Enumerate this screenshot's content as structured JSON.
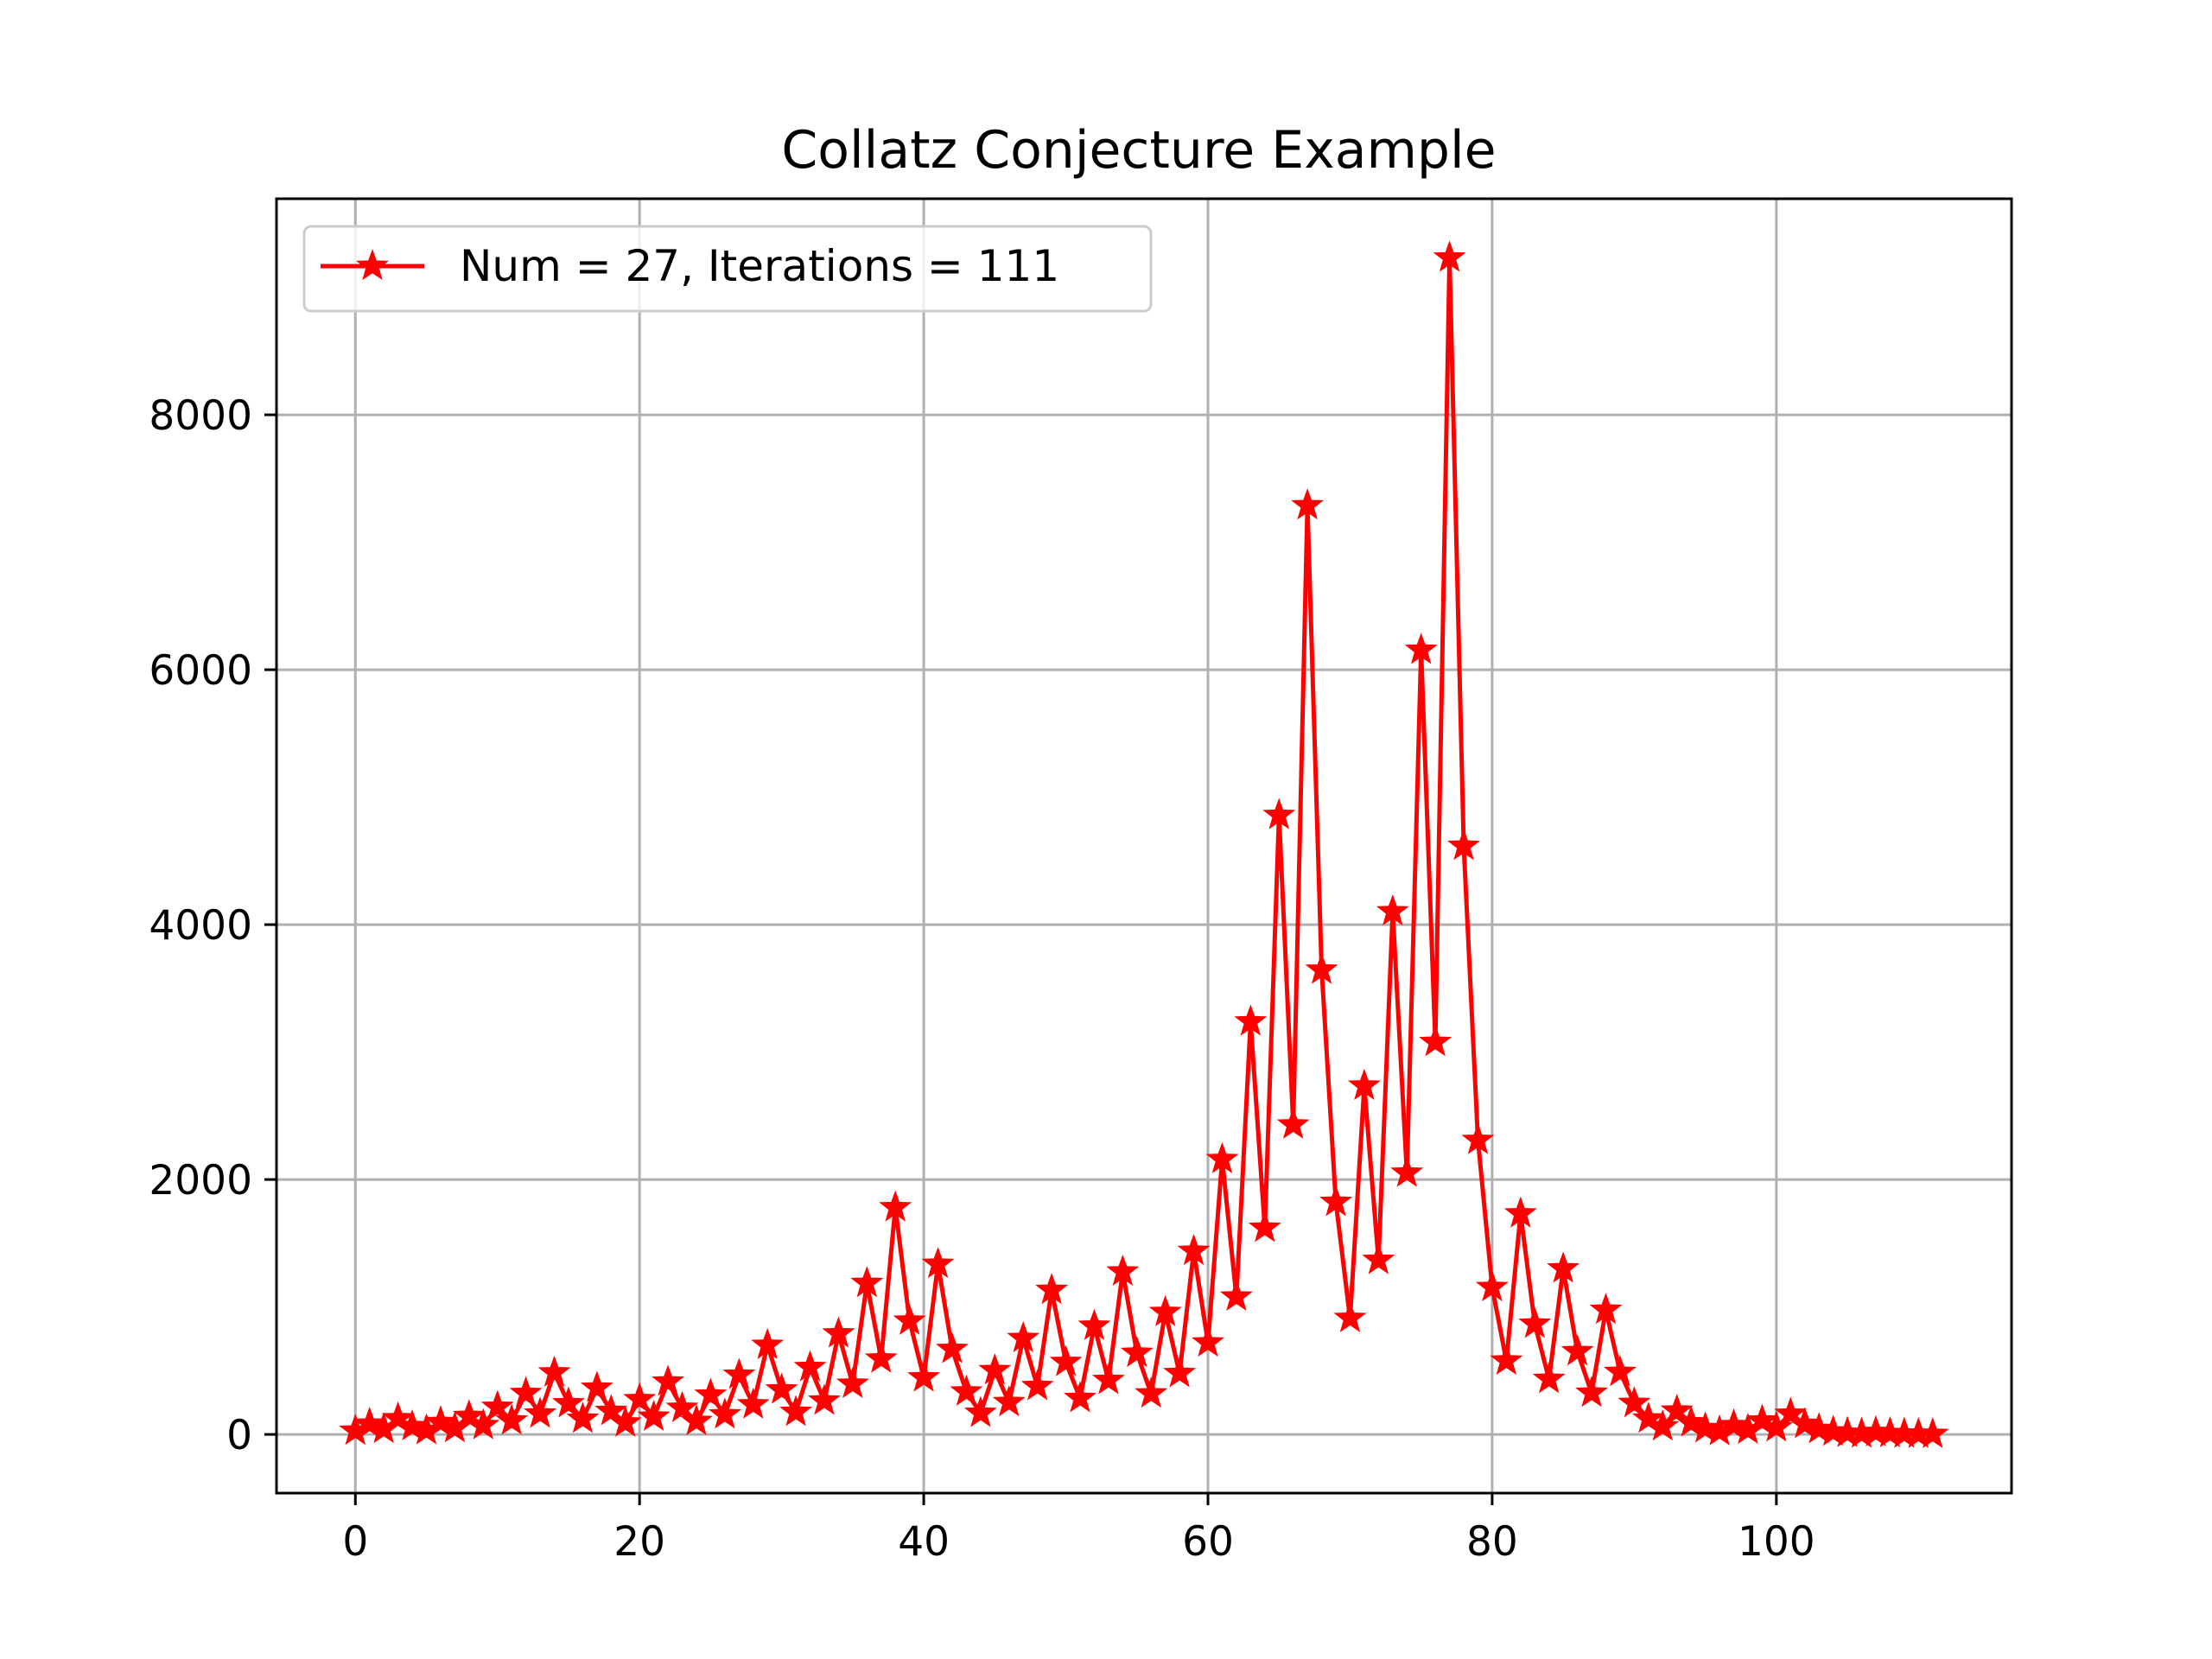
{
  "chart_data": {
    "type": "line",
    "title": "Collatz Conjecture Example",
    "xlabel": "",
    "ylabel": "",
    "xlim": [
      -5.55,
      116.55
    ],
    "ylim": [
      -460.45,
      9695.45
    ],
    "grid": true,
    "legend_position": "top-left",
    "x_ticks": [
      0,
      20,
      40,
      60,
      80,
      100
    ],
    "y_ticks": [
      0,
      2000,
      4000,
      6000,
      8000
    ],
    "series": [
      {
        "name": "Num = 27, Iterations = 111",
        "color": "#ff0000",
        "marker": "star",
        "x": [
          0,
          1,
          2,
          3,
          4,
          5,
          6,
          7,
          8,
          9,
          10,
          11,
          12,
          13,
          14,
          15,
          16,
          17,
          18,
          19,
          20,
          21,
          22,
          23,
          24,
          25,
          26,
          27,
          28,
          29,
          30,
          31,
          32,
          33,
          34,
          35,
          36,
          37,
          38,
          39,
          40,
          41,
          42,
          43,
          44,
          45,
          46,
          47,
          48,
          49,
          50,
          51,
          52,
          53,
          54,
          55,
          56,
          57,
          58,
          59,
          60,
          61,
          62,
          63,
          64,
          65,
          66,
          67,
          68,
          69,
          70,
          71,
          72,
          73,
          74,
          75,
          76,
          77,
          78,
          79,
          80,
          81,
          82,
          83,
          84,
          85,
          86,
          87,
          88,
          89,
          90,
          91,
          92,
          93,
          94,
          95,
          96,
          97,
          98,
          99,
          100,
          101,
          102,
          103,
          104,
          105,
          106,
          107,
          108,
          109,
          110,
          111
        ],
        "values": [
          27,
          82,
          41,
          124,
          62,
          31,
          94,
          47,
          142,
          71,
          214,
          107,
          322,
          161,
          484,
          242,
          121,
          364,
          182,
          91,
          274,
          137,
          412,
          206,
          103,
          310,
          155,
          466,
          233,
          700,
          350,
          175,
          526,
          263,
          790,
          395,
          1186,
          593,
          1780,
          890,
          445,
          1336,
          668,
          334,
          167,
          502,
          251,
          754,
          377,
          1132,
          566,
          283,
          850,
          425,
          1276,
          638,
          319,
          958,
          479,
          1438,
          719,
          2158,
          1079,
          3238,
          1619,
          4858,
          2429,
          7288,
          3644,
          1822,
          911,
          2734,
          1367,
          4102,
          2051,
          6154,
          3077,
          9232,
          4616,
          2308,
          1154,
          577,
          1732,
          866,
          433,
          1300,
          650,
          325,
          976,
          488,
          244,
          122,
          61,
          184,
          92,
          46,
          23,
          70,
          35,
          106,
          53,
          160,
          80,
          40,
          20,
          10,
          5,
          16,
          8,
          4,
          2,
          1
        ]
      }
    ]
  }
}
